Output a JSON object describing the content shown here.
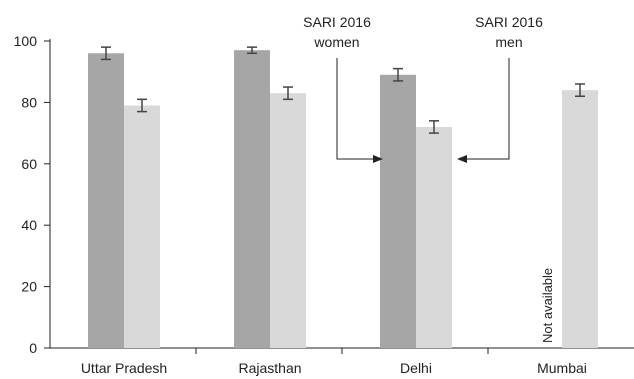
{
  "chart_data": {
    "type": "bar",
    "categories": [
      "Uttar Pradesh",
      "Rajasthan",
      "Delhi",
      "Mumbai"
    ],
    "series": [
      {
        "name": "SARI 2016 women",
        "color": "#a6a6a6",
        "values": [
          96,
          97,
          89,
          null
        ],
        "error": [
          2,
          1,
          2,
          null
        ]
      },
      {
        "name": "SARI 2016 men",
        "color": "#d9d9d9",
        "values": [
          79,
          83,
          72,
          84
        ],
        "error": [
          2,
          2,
          2,
          2
        ]
      }
    ],
    "ylim": [
      0,
      100
    ],
    "yticks": [
      0,
      20,
      40,
      60,
      80,
      100
    ],
    "xlabel": "",
    "ylabel": "",
    "grid": false,
    "annotations": {
      "women": {
        "line1": "SARI 2016",
        "line2": "women"
      },
      "men": {
        "line1": "SARI 2016",
        "line2": "men"
      },
      "not_available": "Not available"
    }
  }
}
